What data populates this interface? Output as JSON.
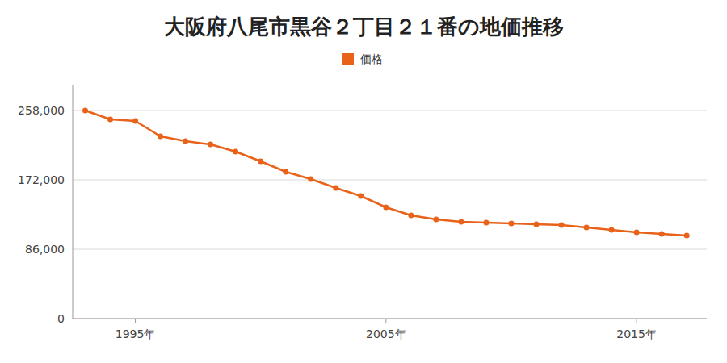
{
  "chart_data": {
    "type": "line",
    "title": "大阪府八尾市黒谷２丁目２１番の地価推移",
    "x": [
      1993,
      1994,
      1995,
      1996,
      1997,
      1998,
      1999,
      2000,
      2001,
      2002,
      2003,
      2004,
      2005,
      2006,
      2007,
      2008,
      2009,
      2010,
      2011,
      2012,
      2013,
      2014,
      2015,
      2016,
      2017
    ],
    "series": [
      {
        "name": "価格",
        "color": "#E8621A",
        "marker": "circle",
        "values": [
          258000,
          247000,
          245000,
          226000,
          220000,
          216000,
          207000,
          195000,
          182000,
          173000,
          162000,
          152000,
          138000,
          128000,
          123000,
          120000,
          119000,
          118000,
          117000,
          116000,
          113000,
          110000,
          107000,
          105000,
          103000
        ]
      }
    ],
    "xlim": [
      1992.5,
      2017.8
    ],
    "xticks": [
      {
        "value": 1995,
        "label": "1995年"
      },
      {
        "value": 2005,
        "label": "2005年"
      },
      {
        "value": 2015,
        "label": "2015年"
      }
    ],
    "ylim": [
      0,
      290000
    ],
    "yticks": [
      0,
      {
        "value": 86000,
        "label": "86,000"
      },
      {
        "value": 172000,
        "label": "172,000"
      },
      {
        "value": 258000,
        "label": "258,000"
      }
    ],
    "grid": true,
    "legend": "top"
  }
}
